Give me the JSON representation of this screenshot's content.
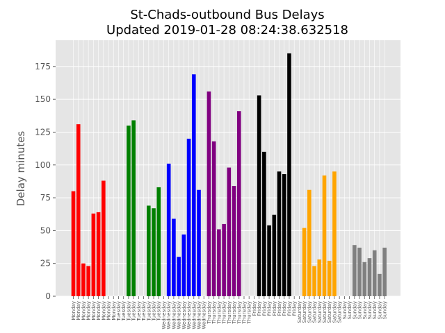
{
  "chart_data": {
    "type": "bar",
    "title_line1": "St-Chads-outbound Bus Delays",
    "title_line2": "Updated 2019-01-28 08:24:38.632518",
    "xlabel": "",
    "ylabel": "Delay minutes",
    "ylim": [
      0,
      195
    ],
    "yticks": [
      0,
      25,
      50,
      75,
      100,
      125,
      150,
      175
    ],
    "grid": true,
    "categories": [
      "Monday",
      "Monday",
      "Monday",
      "Monday",
      "Monday",
      "Monday",
      "Monday",
      "Monday",
      "Monday",
      "Tuesday",
      "Tuesday",
      "Tuesday",
      "Tuesday",
      "Tuesday",
      "Tuesday",
      "Tuesday",
      "Tuesday",
      "Tuesday",
      "Wednesday",
      "Wednesday",
      "Wednesday",
      "Wednesday",
      "Wednesday",
      "Wednesday",
      "Wednesday",
      "Wednesday",
      "Wednesday",
      "Thursday",
      "Thursday",
      "Thursday",
      "Thursday",
      "Thursday",
      "Thursday",
      "Thursday",
      "Thursday",
      "Thursday",
      "Friday",
      "Friday",
      "Friday",
      "Friday",
      "Friday",
      "Friday",
      "Friday",
      "Friday",
      "Friday",
      "Saturday",
      "Saturday",
      "Saturday",
      "Saturday",
      "Saturday",
      "Saturday",
      "Saturday",
      "Saturday",
      "Saturday",
      "Sunday",
      "Sunday",
      "Sunday",
      "Sunday",
      "Sunday",
      "Sunday",
      "Sunday",
      "Sunday",
      "Sunday"
    ],
    "values": [
      80,
      131,
      25,
      23,
      63,
      64,
      88,
      0,
      0,
      0,
      0,
      130,
      134,
      0,
      0,
      69,
      67,
      83,
      0,
      101,
      59,
      30,
      47,
      120,
      169,
      81,
      0,
      156,
      118,
      51,
      55,
      98,
      84,
      141,
      0,
      0,
      0,
      153,
      110,
      54,
      62,
      95,
      93,
      185,
      0,
      0,
      52,
      81,
      23,
      28,
      92,
      27,
      95,
      0,
      0,
      0,
      39,
      37,
      26,
      29,
      35,
      17,
      37
    ],
    "colors": {
      "Monday": "#ff0000",
      "Tuesday": "#008000",
      "Wednesday": "#0000ff",
      "Thursday": "#800080",
      "Friday": "#000000",
      "Saturday": "#ffa500",
      "Sunday": "#808080"
    },
    "background": "#e5e5e5",
    "gridcolor": "#ffffff"
  }
}
